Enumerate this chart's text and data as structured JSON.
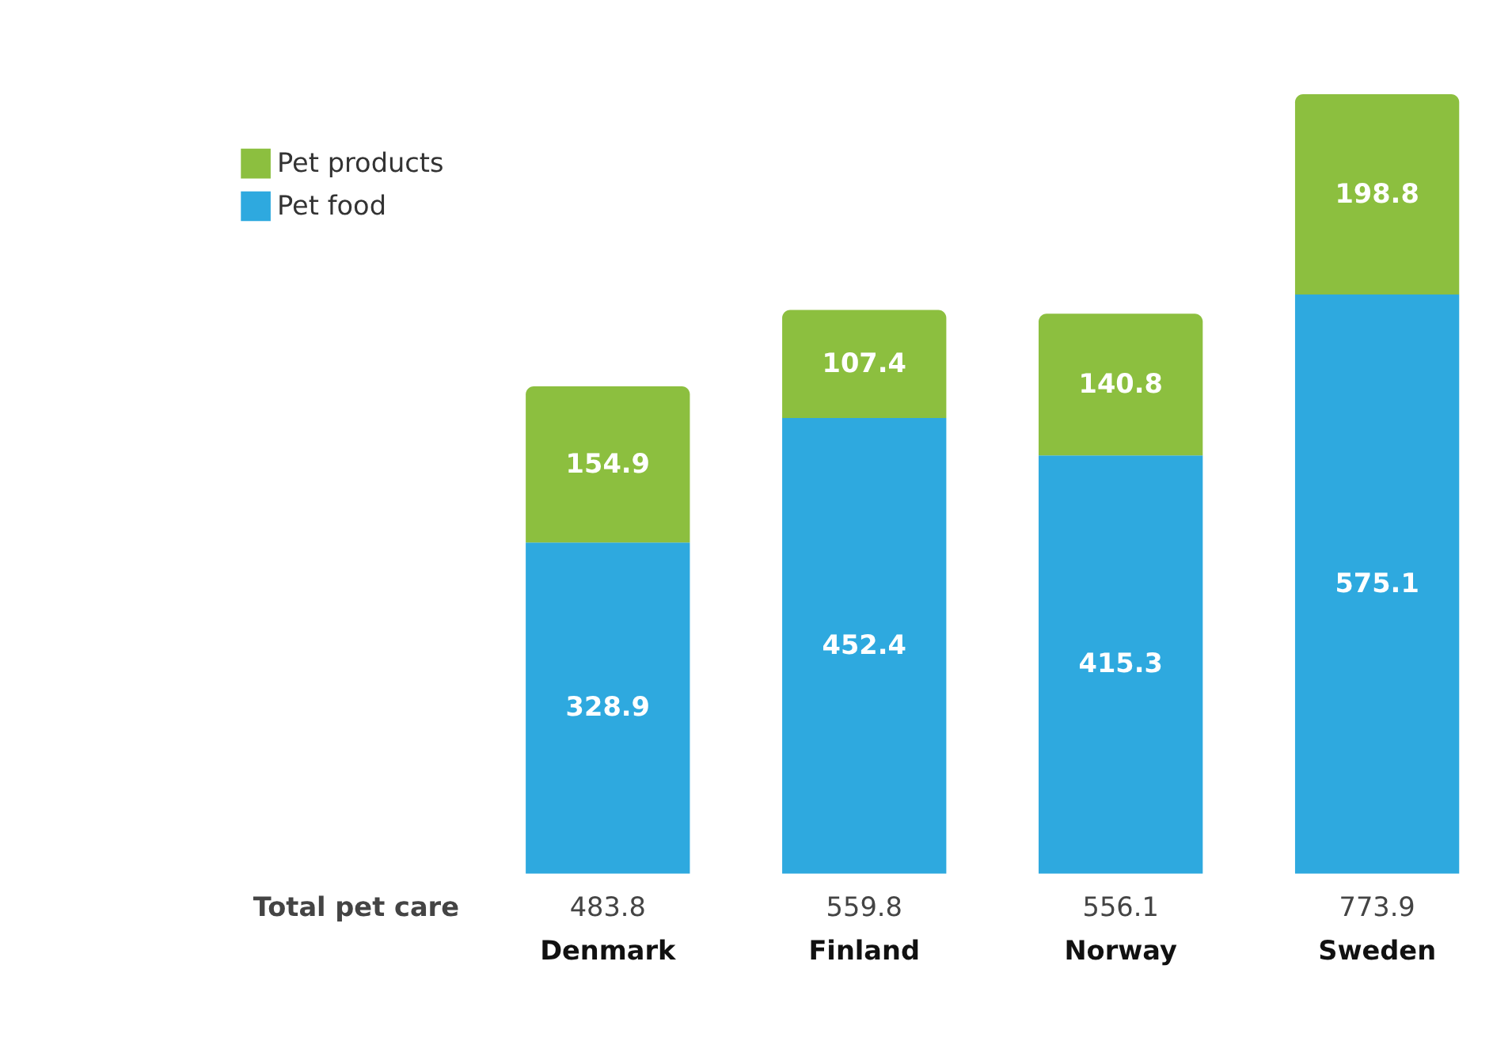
{
  "chart_data": {
    "type": "bar",
    "stacked": true,
    "categories": [
      "Denmark",
      "Finland",
      "Norway",
      "Sweden"
    ],
    "series": [
      {
        "name": "Pet food",
        "color": "#2ea9df",
        "values": [
          328.9,
          452.4,
          415.3,
          575.1
        ]
      },
      {
        "name": "Pet products",
        "color": "#8cbf3f",
        "values": [
          154.9,
          107.4,
          140.8,
          198.8
        ]
      }
    ],
    "data_labels": true,
    "totals": [
      "483.8",
      "559.8",
      "556.1",
      "773.9"
    ],
    "annotations": [
      "Total pet care"
    ],
    "legend": "top left"
  }
}
